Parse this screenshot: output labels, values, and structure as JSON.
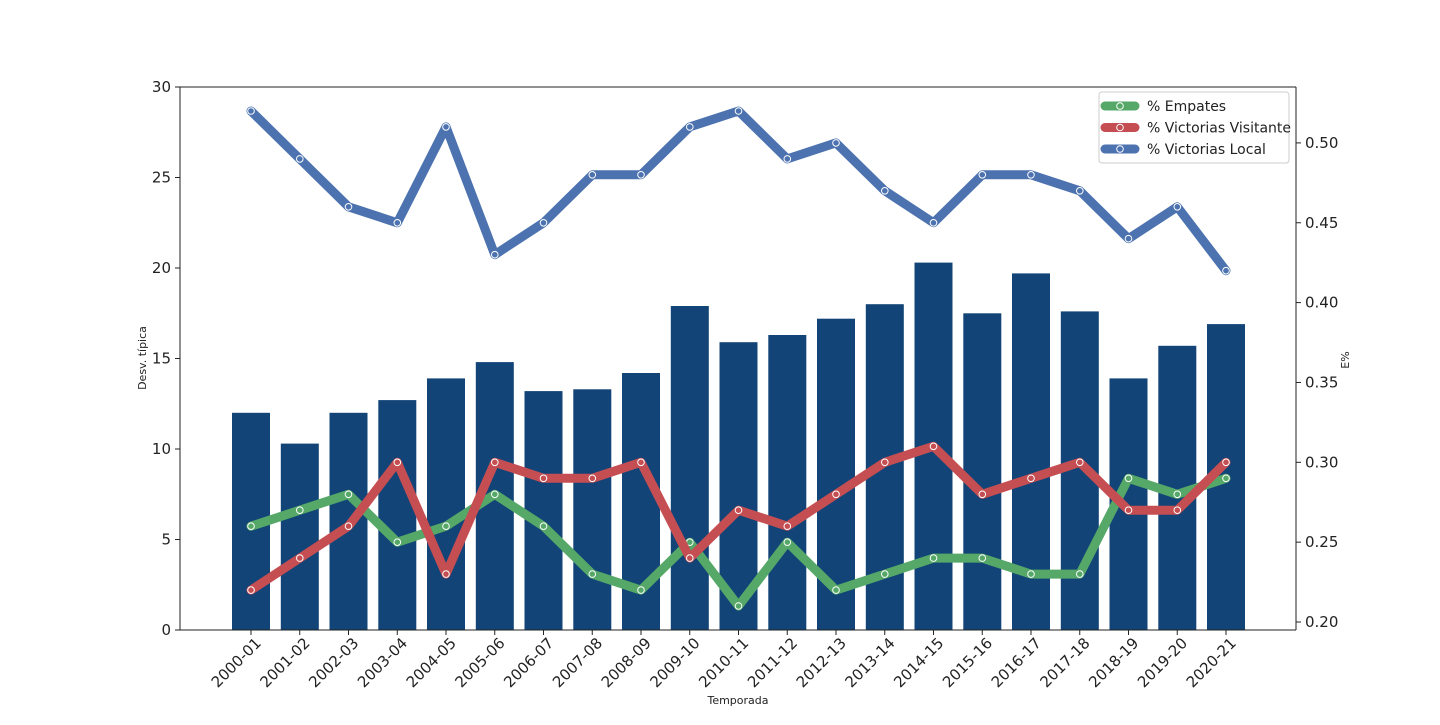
{
  "chart_data": {
    "type": "bar",
    "title": "",
    "xlabel": "Temporada",
    "ylabel_left": "Desv. típica",
    "ylabel_right": "E%",
    "categories": [
      "2000-01",
      "2001-02",
      "2002-03",
      "2003-04",
      "2004-05",
      "2005-06",
      "2006-07",
      "2007-08",
      "2008-09",
      "2009-10",
      "2010-11",
      "2011-12",
      "2012-13",
      "2013-14",
      "2014-15",
      "2015-16",
      "2016-17",
      "2017-18",
      "2018-19",
      "2019-20",
      "2020-21"
    ],
    "bars": {
      "axis": "left",
      "color": "#124477",
      "values": [
        12.0,
        10.3,
        12.0,
        12.7,
        13.9,
        14.8,
        13.2,
        13.3,
        14.2,
        17.9,
        15.9,
        16.3,
        17.2,
        18.0,
        20.3,
        17.5,
        19.7,
        17.6,
        13.9,
        15.7,
        16.9
      ]
    },
    "ylim_left": [
      0,
      30
    ],
    "yticks_left": [
      "0",
      "5",
      "10",
      "15",
      "20",
      "25",
      "30"
    ],
    "ylim_right": [
      0.195,
      0.535
    ],
    "yticks_right": [
      "0.20",
      "0.25",
      "0.30",
      "0.35",
      "0.40",
      "0.45",
      "0.50"
    ],
    "series": [
      {
        "name": "% Empates",
        "axis": "right",
        "color": "#55a868",
        "values": [
          0.26,
          0.27,
          0.28,
          0.25,
          0.26,
          0.28,
          0.26,
          0.23,
          0.22,
          0.25,
          0.21,
          0.25,
          0.22,
          0.23,
          0.24,
          0.24,
          0.23,
          0.23,
          0.29,
          0.28,
          0.29
        ]
      },
      {
        "name": "% Victorias Visitante",
        "axis": "right",
        "color": "#c44e52",
        "values": [
          0.22,
          0.24,
          0.26,
          0.3,
          0.23,
          0.3,
          0.29,
          0.29,
          0.3,
          0.24,
          0.27,
          0.26,
          0.28,
          0.3,
          0.31,
          0.28,
          0.29,
          0.3,
          0.27,
          0.27,
          0.3
        ]
      },
      {
        "name": "% Victorias Local",
        "axis": "right",
        "color": "#4c72b0",
        "values": [
          0.52,
          0.49,
          0.46,
          0.45,
          0.51,
          0.43,
          0.45,
          0.48,
          0.48,
          0.51,
          0.52,
          0.49,
          0.5,
          0.47,
          0.45,
          0.48,
          0.48,
          0.47,
          0.44,
          0.46,
          0.42
        ]
      }
    ],
    "legend": {
      "position": "top-right",
      "order": [
        "% Empates",
        "% Victorias Visitante",
        "% Victorias Local"
      ]
    },
    "grid": false
  }
}
